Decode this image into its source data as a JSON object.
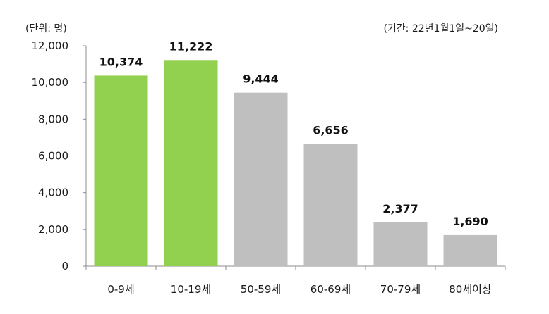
{
  "unit_label": "(단위: 명)",
  "period_label": "(기간: 22년1월1일~20일)",
  "chart_data": {
    "type": "bar",
    "categories": [
      "0-9세",
      "10-19세",
      "50-59세",
      "60-69세",
      "70-79세",
      "80세이상"
    ],
    "values": [
      10374,
      11222,
      9444,
      6656,
      2377,
      1690
    ],
    "value_labels": [
      "10,374",
      "11,222",
      "9,444",
      "6,656",
      "2,377",
      "1,690"
    ],
    "bar_colors": [
      "#92d050",
      "#92d050",
      "#bfbfbf",
      "#bfbfbf",
      "#bfbfbf",
      "#bfbfbf"
    ],
    "ylim": [
      0,
      12000
    ],
    "yticks": [
      0,
      2000,
      4000,
      6000,
      8000,
      10000,
      12000
    ],
    "ytick_labels": [
      "0",
      "2,000",
      "4,000",
      "6,000",
      "8,000",
      "10,000",
      "12,000"
    ],
    "grid": false
  }
}
